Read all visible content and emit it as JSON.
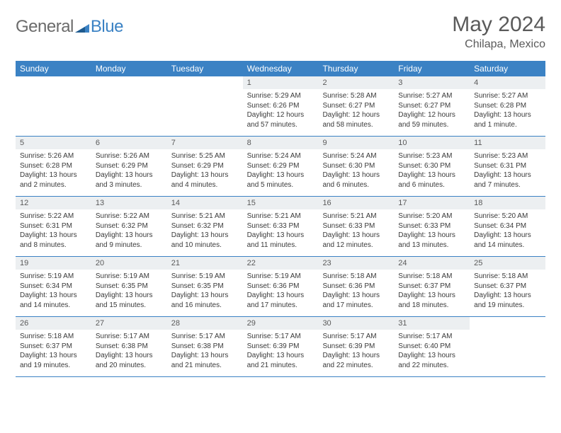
{
  "logo": {
    "general": "General",
    "blue": "Blue"
  },
  "header": {
    "month": "May 2024",
    "location": "Chilapa, Mexico"
  },
  "colors": {
    "header_bg": "#3b82c4",
    "header_text": "#ffffff",
    "daynum_bg": "#eceff1",
    "text": "#3a3a3a",
    "logo_gray": "#6b6b6b",
    "logo_blue": "#3b82c4",
    "border": "#3b82c4"
  },
  "dayNames": [
    "Sunday",
    "Monday",
    "Tuesday",
    "Wednesday",
    "Thursday",
    "Friday",
    "Saturday"
  ],
  "weeks": [
    [
      {
        "empty": true
      },
      {
        "empty": true
      },
      {
        "empty": true
      },
      {
        "num": "1",
        "sunrise": "Sunrise: 5:29 AM",
        "sunset": "Sunset: 6:26 PM",
        "daylight": "Daylight: 12 hours and 57 minutes."
      },
      {
        "num": "2",
        "sunrise": "Sunrise: 5:28 AM",
        "sunset": "Sunset: 6:27 PM",
        "daylight": "Daylight: 12 hours and 58 minutes."
      },
      {
        "num": "3",
        "sunrise": "Sunrise: 5:27 AM",
        "sunset": "Sunset: 6:27 PM",
        "daylight": "Daylight: 12 hours and 59 minutes."
      },
      {
        "num": "4",
        "sunrise": "Sunrise: 5:27 AM",
        "sunset": "Sunset: 6:28 PM",
        "daylight": "Daylight: 13 hours and 1 minute."
      }
    ],
    [
      {
        "num": "5",
        "sunrise": "Sunrise: 5:26 AM",
        "sunset": "Sunset: 6:28 PM",
        "daylight": "Daylight: 13 hours and 2 minutes."
      },
      {
        "num": "6",
        "sunrise": "Sunrise: 5:26 AM",
        "sunset": "Sunset: 6:29 PM",
        "daylight": "Daylight: 13 hours and 3 minutes."
      },
      {
        "num": "7",
        "sunrise": "Sunrise: 5:25 AM",
        "sunset": "Sunset: 6:29 PM",
        "daylight": "Daylight: 13 hours and 4 minutes."
      },
      {
        "num": "8",
        "sunrise": "Sunrise: 5:24 AM",
        "sunset": "Sunset: 6:29 PM",
        "daylight": "Daylight: 13 hours and 5 minutes."
      },
      {
        "num": "9",
        "sunrise": "Sunrise: 5:24 AM",
        "sunset": "Sunset: 6:30 PM",
        "daylight": "Daylight: 13 hours and 6 minutes."
      },
      {
        "num": "10",
        "sunrise": "Sunrise: 5:23 AM",
        "sunset": "Sunset: 6:30 PM",
        "daylight": "Daylight: 13 hours and 6 minutes."
      },
      {
        "num": "11",
        "sunrise": "Sunrise: 5:23 AM",
        "sunset": "Sunset: 6:31 PM",
        "daylight": "Daylight: 13 hours and 7 minutes."
      }
    ],
    [
      {
        "num": "12",
        "sunrise": "Sunrise: 5:22 AM",
        "sunset": "Sunset: 6:31 PM",
        "daylight": "Daylight: 13 hours and 8 minutes."
      },
      {
        "num": "13",
        "sunrise": "Sunrise: 5:22 AM",
        "sunset": "Sunset: 6:32 PM",
        "daylight": "Daylight: 13 hours and 9 minutes."
      },
      {
        "num": "14",
        "sunrise": "Sunrise: 5:21 AM",
        "sunset": "Sunset: 6:32 PM",
        "daylight": "Daylight: 13 hours and 10 minutes."
      },
      {
        "num": "15",
        "sunrise": "Sunrise: 5:21 AM",
        "sunset": "Sunset: 6:33 PM",
        "daylight": "Daylight: 13 hours and 11 minutes."
      },
      {
        "num": "16",
        "sunrise": "Sunrise: 5:21 AM",
        "sunset": "Sunset: 6:33 PM",
        "daylight": "Daylight: 13 hours and 12 minutes."
      },
      {
        "num": "17",
        "sunrise": "Sunrise: 5:20 AM",
        "sunset": "Sunset: 6:33 PM",
        "daylight": "Daylight: 13 hours and 13 minutes."
      },
      {
        "num": "18",
        "sunrise": "Sunrise: 5:20 AM",
        "sunset": "Sunset: 6:34 PM",
        "daylight": "Daylight: 13 hours and 14 minutes."
      }
    ],
    [
      {
        "num": "19",
        "sunrise": "Sunrise: 5:19 AM",
        "sunset": "Sunset: 6:34 PM",
        "daylight": "Daylight: 13 hours and 14 minutes."
      },
      {
        "num": "20",
        "sunrise": "Sunrise: 5:19 AM",
        "sunset": "Sunset: 6:35 PM",
        "daylight": "Daylight: 13 hours and 15 minutes."
      },
      {
        "num": "21",
        "sunrise": "Sunrise: 5:19 AM",
        "sunset": "Sunset: 6:35 PM",
        "daylight": "Daylight: 13 hours and 16 minutes."
      },
      {
        "num": "22",
        "sunrise": "Sunrise: 5:19 AM",
        "sunset": "Sunset: 6:36 PM",
        "daylight": "Daylight: 13 hours and 17 minutes."
      },
      {
        "num": "23",
        "sunrise": "Sunrise: 5:18 AM",
        "sunset": "Sunset: 6:36 PM",
        "daylight": "Daylight: 13 hours and 17 minutes."
      },
      {
        "num": "24",
        "sunrise": "Sunrise: 5:18 AM",
        "sunset": "Sunset: 6:37 PM",
        "daylight": "Daylight: 13 hours and 18 minutes."
      },
      {
        "num": "25",
        "sunrise": "Sunrise: 5:18 AM",
        "sunset": "Sunset: 6:37 PM",
        "daylight": "Daylight: 13 hours and 19 minutes."
      }
    ],
    [
      {
        "num": "26",
        "sunrise": "Sunrise: 5:18 AM",
        "sunset": "Sunset: 6:37 PM",
        "daylight": "Daylight: 13 hours and 19 minutes."
      },
      {
        "num": "27",
        "sunrise": "Sunrise: 5:17 AM",
        "sunset": "Sunset: 6:38 PM",
        "daylight": "Daylight: 13 hours and 20 minutes."
      },
      {
        "num": "28",
        "sunrise": "Sunrise: 5:17 AM",
        "sunset": "Sunset: 6:38 PM",
        "daylight": "Daylight: 13 hours and 21 minutes."
      },
      {
        "num": "29",
        "sunrise": "Sunrise: 5:17 AM",
        "sunset": "Sunset: 6:39 PM",
        "daylight": "Daylight: 13 hours and 21 minutes."
      },
      {
        "num": "30",
        "sunrise": "Sunrise: 5:17 AM",
        "sunset": "Sunset: 6:39 PM",
        "daylight": "Daylight: 13 hours and 22 minutes."
      },
      {
        "num": "31",
        "sunrise": "Sunrise: 5:17 AM",
        "sunset": "Sunset: 6:40 PM",
        "daylight": "Daylight: 13 hours and 22 minutes."
      },
      {
        "empty": true
      }
    ]
  ]
}
